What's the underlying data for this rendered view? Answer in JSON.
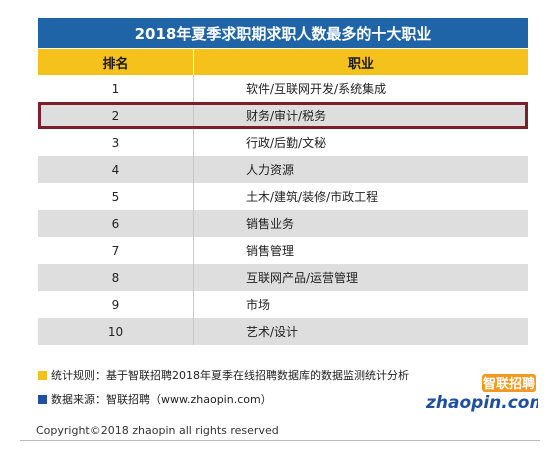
{
  "title": "2018年夏季求职期求职人数最多的十大职业",
  "table": {
    "headers": {
      "rank": "排名",
      "job": "职业"
    },
    "rows": [
      {
        "rank": "1",
        "job": "软件/互联网开发/系统集成"
      },
      {
        "rank": "2",
        "job": "财务/审计/税务",
        "highlight": true
      },
      {
        "rank": "3",
        "job": "行政/后勤/文秘"
      },
      {
        "rank": "4",
        "job": "人力资源"
      },
      {
        "rank": "5",
        "job": "土木/建筑/装修/市政工程"
      },
      {
        "rank": "6",
        "job": "销售业务"
      },
      {
        "rank": "7",
        "job": "销售管理"
      },
      {
        "rank": "8",
        "job": "互联网产品/运营管理"
      },
      {
        "rank": "9",
        "job": "市场"
      },
      {
        "rank": "10",
        "job": "艺术/设计"
      }
    ]
  },
  "notes": {
    "stats_rule": "统计规则：基于智联招聘2018年夏季在线招聘数据库的数据监测统计分析",
    "data_source": "数据来源：智联招聘（www.zhaopin.com）"
  },
  "logo": {
    "cn": "智联招聘",
    "en": "zhaopin.com"
  },
  "copyright": "Copyright©2018 zhaopin all rights reserved",
  "colors": {
    "title_bg": "#1f64a6",
    "header_bg": "#f4c21a",
    "highlight": "#7d1f2b",
    "logo_orange": "#f39a1e"
  }
}
